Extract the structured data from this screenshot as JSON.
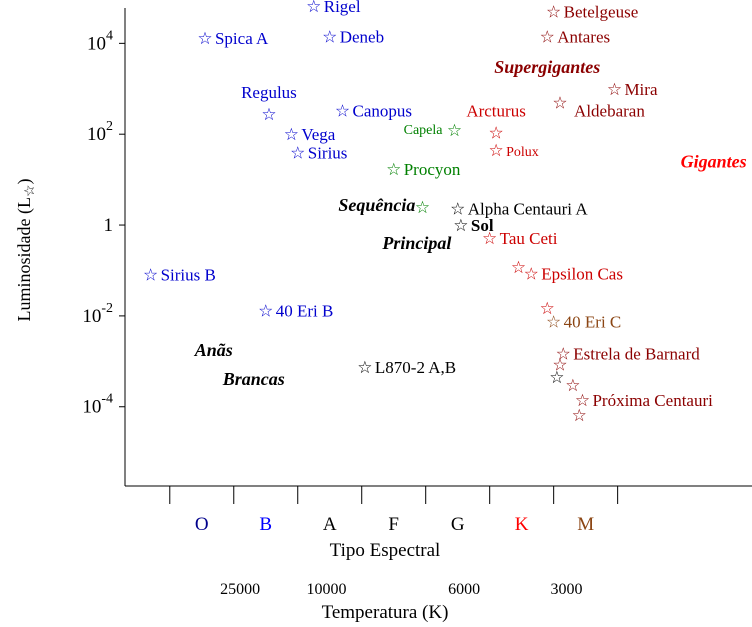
{
  "chart_data": {
    "type": "scatter",
    "title": "",
    "xlabel": "Tipo Espectral",
    "x2label": "Temperatura (K)",
    "ylabel": "Luminosidade (L",
    "ylabel_symbol": "☆",
    "ylabel_close": ")",
    "y_scale": "log",
    "ylim": [
      1.8e-06,
      60000
    ],
    "y_ticks": [
      {
        "value": 10000,
        "base": "10",
        "exp": "4"
      },
      {
        "value": 100,
        "base": "10",
        "exp": "2"
      },
      {
        "value": 1,
        "base": "1",
        "exp": ""
      },
      {
        "value": 0.01,
        "base": "10",
        "exp": "-2"
      },
      {
        "value": 0.0001,
        "base": "10",
        "exp": "-4"
      }
    ],
    "spectral_classes": [
      {
        "label": "O",
        "color": "#00008b",
        "pos": 0.5
      },
      {
        "label": "B",
        "color": "#0000ff",
        "pos": 1.5
      },
      {
        "label": "A",
        "color": "#000000",
        "pos": 2.5
      },
      {
        "label": "F",
        "color": "#000000",
        "pos": 3.5
      },
      {
        "label": "G",
        "color": "#000000",
        "pos": 4.5
      },
      {
        "label": "K",
        "color": "#ff0000",
        "pos": 5.5
      },
      {
        "label": "M",
        "color": "#8b4513",
        "pos": 6.5
      }
    ],
    "class_boundaries": [
      0,
      1,
      2,
      3,
      4,
      5,
      6,
      7
    ],
    "temperature_ticks": [
      {
        "label": "25000",
        "pos": 1.1
      },
      {
        "label": "10000",
        "pos": 2.45
      },
      {
        "label": "6000",
        "pos": 4.6
      },
      {
        "label": "3000",
        "pos": 6.2
      }
    ],
    "xlim": [
      -0.7,
      9.1
    ],
    "stars": [
      {
        "name": "Rigel",
        "spectral_pos": 2.25,
        "luminosity": 66000,
        "color": "#0000cd",
        "label_side": "right"
      },
      {
        "name": "Spica A",
        "spectral_pos": 0.55,
        "luminosity": 13000,
        "color": "#0000cd",
        "label_side": "right"
      },
      {
        "name": "Deneb",
        "spectral_pos": 2.5,
        "luminosity": 14000,
        "color": "#0000cd",
        "label_side": "right"
      },
      {
        "name": "Regulus",
        "spectral_pos": 1.55,
        "luminosity": 280,
        "color": "#0000cd",
        "label_side": "above"
      },
      {
        "name": "Canopus",
        "spectral_pos": 2.7,
        "luminosity": 330,
        "color": "#0000cd",
        "label_side": "right"
      },
      {
        "name": "Vega",
        "spectral_pos": 1.9,
        "luminosity": 100,
        "color": "#0000cd",
        "label_side": "right"
      },
      {
        "name": "Sirius",
        "spectral_pos": 2.0,
        "luminosity": 40,
        "color": "#0000cd",
        "label_side": "right"
      },
      {
        "name": "Procyon",
        "spectral_pos": 3.5,
        "luminosity": 17,
        "color": "#008000",
        "label_side": "right"
      },
      {
        "name": "",
        "spectral_pos": 3.95,
        "luminosity": 2.5,
        "color": "#008000",
        "label_side": "none"
      },
      {
        "name": "Alpha Centauri A",
        "spectral_pos": 4.5,
        "luminosity": 2.3,
        "color": "#000000",
        "label_side": "right"
      },
      {
        "name": "Sol",
        "spectral_pos": 4.55,
        "luminosity": 1,
        "color": "#000000",
        "label_side": "right",
        "bold": true
      },
      {
        "name": "Capela",
        "spectral_pos": 4.45,
        "luminosity": 125,
        "color": "#008000",
        "label_side": "left",
        "small": true
      },
      {
        "name": "Arcturus",
        "spectral_pos": 5.1,
        "luminosity": 110,
        "color": "#cc0000",
        "label_side": "above"
      },
      {
        "name": "Polux",
        "spectral_pos": 5.1,
        "luminosity": 45,
        "color": "#cc0000",
        "label_side": "right",
        "small": true
      },
      {
        "name": "Aldebaran",
        "spectral_pos": 6.1,
        "luminosity": 500,
        "color": "#8b0000",
        "label_side": "right_below"
      },
      {
        "name": "Betelgeuse",
        "spectral_pos": 6.0,
        "luminosity": 50000,
        "color": "#8b0000",
        "label_side": "right"
      },
      {
        "name": "Antares",
        "spectral_pos": 5.9,
        "luminosity": 14000,
        "color": "#8b0000",
        "label_side": "right"
      },
      {
        "name": "Mira",
        "spectral_pos": 6.95,
        "luminosity": 1000,
        "color": "#8b0000",
        "label_side": "right"
      },
      {
        "name": "Tau Ceti",
        "spectral_pos": 5.0,
        "luminosity": 0.52,
        "color": "#cc0000",
        "label_side": "right"
      },
      {
        "name": "",
        "spectral_pos": 5.45,
        "luminosity": 0.12,
        "color": "#cc0000",
        "label_side": "none"
      },
      {
        "name": "Epsilon Cas",
        "spectral_pos": 5.65,
        "luminosity": 0.085,
        "color": "#cc0000",
        "label_side": "right"
      },
      {
        "name": "",
        "spectral_pos": 5.9,
        "luminosity": 0.015,
        "color": "#cc0000",
        "label_side": "none"
      },
      {
        "name": "40 Eri C",
        "spectral_pos": 6.0,
        "luminosity": 0.0075,
        "color": "#8b4513",
        "label_side": "right"
      },
      {
        "name": "Estrela de Barnard",
        "spectral_pos": 6.15,
        "luminosity": 0.0015,
        "color": "#8b0000",
        "label_side": "right"
      },
      {
        "name": "",
        "spectral_pos": 6.1,
        "luminosity": 0.00085,
        "color": "#8b0000",
        "label_side": "none"
      },
      {
        "name": "",
        "spectral_pos": 6.05,
        "luminosity": 0.00045,
        "color": "#000000",
        "label_side": "none"
      },
      {
        "name": "",
        "spectral_pos": 6.3,
        "luminosity": 0.0003,
        "color": "#8b0000",
        "label_side": "none"
      },
      {
        "name": "Próxima Centauri",
        "spectral_pos": 6.45,
        "luminosity": 0.00014,
        "color": "#8b0000",
        "label_side": "right"
      },
      {
        "name": "",
        "spectral_pos": 6.4,
        "luminosity": 6.5e-05,
        "color": "#8b0000",
        "label_side": "none"
      },
      {
        "name": "Sirius B",
        "spectral_pos": -0.3,
        "luminosity": 0.082,
        "color": "#0000cd",
        "label_side": "right"
      },
      {
        "name": "40 Eri B",
        "spectral_pos": 1.5,
        "luminosity": 0.013,
        "color": "#0000cd",
        "label_side": "right"
      },
      {
        "name": "L870-2 A,B",
        "spectral_pos": 3.05,
        "luminosity": 0.00075,
        "color": "#000000",
        "label_side": "right"
      }
    ],
    "regions": [
      {
        "lines": [
          "Supergigantes"
        ],
        "spectral_pos": 5.9,
        "luminosity": 3000,
        "color": "#8b0000"
      },
      {
        "lines": [
          "Gigantes"
        ],
        "spectral_pos": 8.5,
        "luminosity": 25,
        "color": "#ff0000"
      },
      {
        "lines": [
          "Sequência",
          "Principal"
        ],
        "spectral_pos": 3.55,
        "luminosity": 1.05,
        "color": "#000000",
        "offsets": [
          -0.45,
          0.45
        ]
      },
      {
        "lines": [
          "Anãs",
          "Brancas"
        ],
        "spectral_pos": 1.0,
        "luminosity": 0.00085,
        "color": "#000000",
        "offsets": [
          -0.35,
          0.35
        ]
      }
    ]
  }
}
